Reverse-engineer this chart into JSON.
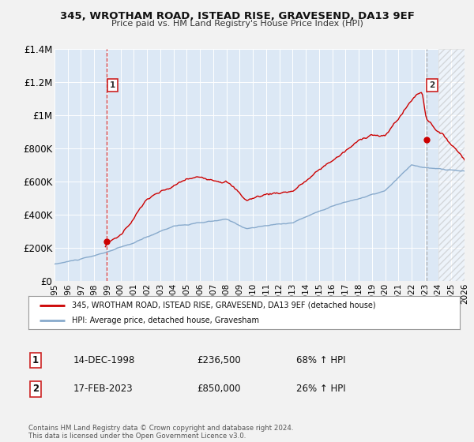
{
  "title": "345, WROTHAM ROAD, ISTEAD RISE, GRAVESEND, DA13 9EF",
  "subtitle": "Price paid vs. HM Land Registry's House Price Index (HPI)",
  "bg_color": "#f2f2f2",
  "plot_bg_color": "#dce8f5",
  "red_color": "#cc0000",
  "blue_color": "#88aacc",
  "grid_color": "#ffffff",
  "sale1_date_num": 1998.96,
  "sale1_price": 236500,
  "sale1_label": "1",
  "sale2_date_num": 2023.12,
  "sale2_price": 850000,
  "sale2_label": "2",
  "xmin": 1995,
  "xmax": 2026,
  "ymin": 0,
  "ymax": 1400000,
  "yticks": [
    0,
    200000,
    400000,
    600000,
    800000,
    1000000,
    1200000,
    1400000
  ],
  "ytick_labels": [
    "£0",
    "£200K",
    "£400K",
    "£600K",
    "£800K",
    "£1M",
    "£1.2M",
    "£1.4M"
  ],
  "xticks": [
    1995,
    1996,
    1997,
    1998,
    1999,
    2000,
    2001,
    2002,
    2003,
    2004,
    2005,
    2006,
    2007,
    2008,
    2009,
    2010,
    2011,
    2012,
    2013,
    2014,
    2015,
    2016,
    2017,
    2018,
    2019,
    2020,
    2021,
    2022,
    2023,
    2024,
    2025,
    2026
  ],
  "legend_line1": "345, WROTHAM ROAD, ISTEAD RISE, GRAVESEND, DA13 9EF (detached house)",
  "legend_line2": "HPI: Average price, detached house, Gravesham",
  "table_row1_num": "1",
  "table_row1_date": "14-DEC-1998",
  "table_row1_price": "£236,500",
  "table_row1_hpi": "68% ↑ HPI",
  "table_row2_num": "2",
  "table_row2_date": "17-FEB-2023",
  "table_row2_price": "£850,000",
  "table_row2_hpi": "26% ↑ HPI",
  "footer": "Contains HM Land Registry data © Crown copyright and database right 2024.\nThis data is licensed under the Open Government Licence v3.0.",
  "hatch_start": 2024.0
}
